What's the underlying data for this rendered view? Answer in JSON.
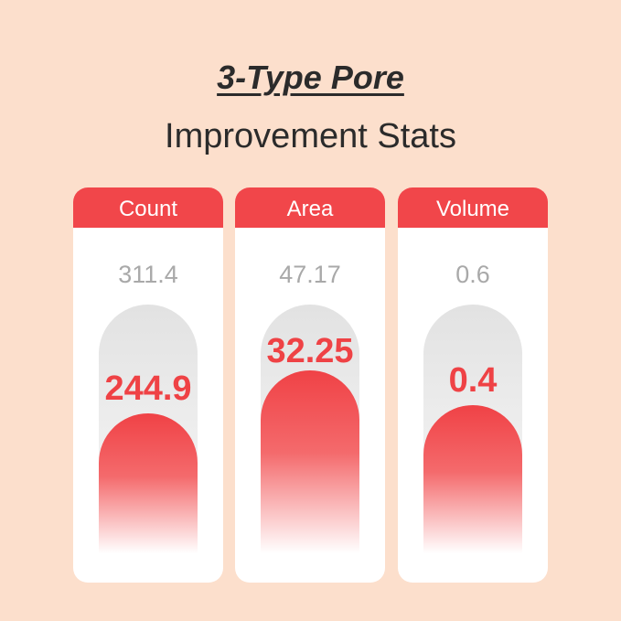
{
  "header": {
    "title": "3-Type Pore",
    "subtitle": "Improvement Stats"
  },
  "panels": [
    {
      "label": "Count",
      "before": "311.4",
      "after": "244.9"
    },
    {
      "label": "Area",
      "before": "47.17",
      "after": "32.25"
    },
    {
      "label": "Volume",
      "before": "0.6",
      "after": "0.4"
    }
  ]
}
